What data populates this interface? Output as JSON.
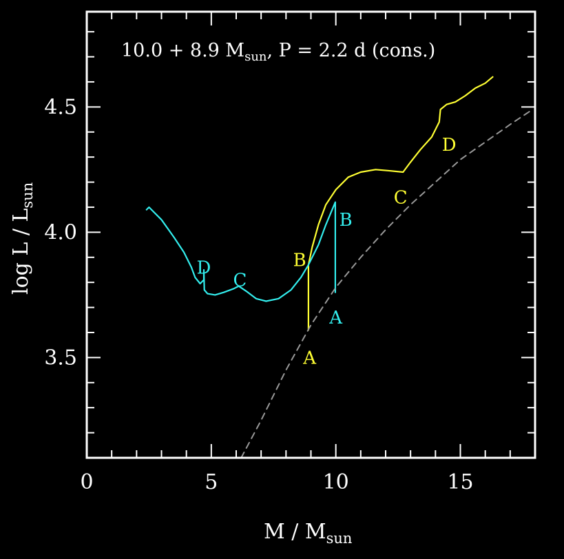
{
  "chart_data": {
    "type": "line",
    "annotation": {
      "main": "10.0 + 8.9 M",
      "sub": "sun",
      "tail": ", P = 2.2 d (cons.)"
    },
    "xlabel": {
      "main": "M / M",
      "sub": "sun"
    },
    "ylabel": {
      "main": "log L / L",
      "sub": "sun"
    },
    "xlim": [
      0,
      18
    ],
    "ylim": [
      3.1,
      4.88
    ],
    "x_ticks": [
      0,
      5,
      10,
      15
    ],
    "y_ticks": [
      3.5,
      4.0,
      4.5
    ],
    "x_tick_labels": [
      "0",
      "5",
      "10",
      "15"
    ],
    "y_tick_labels": [
      "3.5",
      "4.0",
      "4.5"
    ],
    "x_minor_step": 1,
    "y_minor_step": 0.1,
    "grid": false,
    "colors": {
      "primary": "#ffff33",
      "secondary": "#33eeee",
      "reference": "#999999",
      "frame": "#ffffff"
    },
    "series": [
      {
        "color_key": "primary",
        "dashed": false,
        "points": [
          [
            8.9,
            3.61
          ],
          [
            8.9,
            3.74
          ],
          [
            8.9,
            3.87
          ],
          [
            9.05,
            3.94
          ],
          [
            9.3,
            4.03
          ],
          [
            9.6,
            4.11
          ],
          [
            10.0,
            4.17
          ],
          [
            10.5,
            4.22
          ],
          [
            11.0,
            4.24
          ],
          [
            11.6,
            4.25
          ],
          [
            12.2,
            4.245
          ],
          [
            12.7,
            4.24
          ],
          [
            13.0,
            4.28
          ],
          [
            13.4,
            4.33
          ],
          [
            13.85,
            4.38
          ],
          [
            14.15,
            4.44
          ],
          [
            14.2,
            4.49
          ],
          [
            14.45,
            4.51
          ],
          [
            14.8,
            4.52
          ],
          [
            15.2,
            4.545
          ],
          [
            15.6,
            4.575
          ],
          [
            16.0,
            4.595
          ],
          [
            16.3,
            4.62
          ]
        ]
      },
      {
        "color_key": "secondary",
        "dashed": false,
        "points": [
          [
            2.4,
            4.09
          ],
          [
            2.5,
            4.1
          ],
          [
            3.0,
            4.05
          ],
          [
            3.5,
            3.98
          ],
          [
            3.9,
            3.92
          ],
          [
            4.2,
            3.86
          ],
          [
            4.35,
            3.82
          ],
          [
            4.55,
            3.795
          ],
          [
            4.7,
            3.81
          ],
          [
            4.7,
            3.85
          ],
          [
            4.72,
            3.77
          ],
          [
            4.85,
            3.755
          ],
          [
            5.15,
            3.75
          ],
          [
            5.5,
            3.76
          ],
          [
            5.9,
            3.775
          ],
          [
            6.1,
            3.785
          ],
          [
            6.4,
            3.765
          ],
          [
            6.8,
            3.735
          ],
          [
            7.2,
            3.725
          ],
          [
            7.7,
            3.735
          ],
          [
            8.2,
            3.77
          ],
          [
            8.6,
            3.82
          ],
          [
            8.9,
            3.87
          ],
          [
            9.3,
            3.95
          ],
          [
            9.6,
            4.03
          ],
          [
            9.98,
            4.12
          ],
          [
            9.98,
            3.94
          ],
          [
            9.98,
            3.76
          ]
        ]
      },
      {
        "color_key": "reference",
        "dashed": true,
        "points": [
          [
            6.2,
            3.1
          ],
          [
            7.0,
            3.25
          ],
          [
            8.0,
            3.45
          ],
          [
            9.0,
            3.63
          ],
          [
            10.0,
            3.78
          ],
          [
            11.0,
            3.9
          ],
          [
            12.0,
            4.01
          ],
          [
            13.0,
            4.11
          ],
          [
            14.0,
            4.2
          ],
          [
            15.0,
            4.29
          ],
          [
            16.0,
            4.36
          ],
          [
            17.0,
            4.43
          ],
          [
            17.9,
            4.49
          ]
        ]
      }
    ],
    "point_labels": [
      {
        "text": "A",
        "x": 8.95,
        "y": 3.5,
        "color_key": "primary"
      },
      {
        "text": "B",
        "x": 8.55,
        "y": 3.89,
        "color_key": "primary"
      },
      {
        "text": "C",
        "x": 12.6,
        "y": 4.14,
        "color_key": "primary"
      },
      {
        "text": "D",
        "x": 14.55,
        "y": 4.35,
        "color_key": "primary"
      },
      {
        "text": "A",
        "x": 10.0,
        "y": 3.66,
        "color_key": "secondary"
      },
      {
        "text": "B",
        "x": 10.4,
        "y": 4.05,
        "color_key": "secondary"
      },
      {
        "text": "C",
        "x": 6.15,
        "y": 3.81,
        "color_key": "secondary"
      },
      {
        "text": "D",
        "x": 4.7,
        "y": 3.86,
        "color_key": "secondary"
      }
    ]
  }
}
